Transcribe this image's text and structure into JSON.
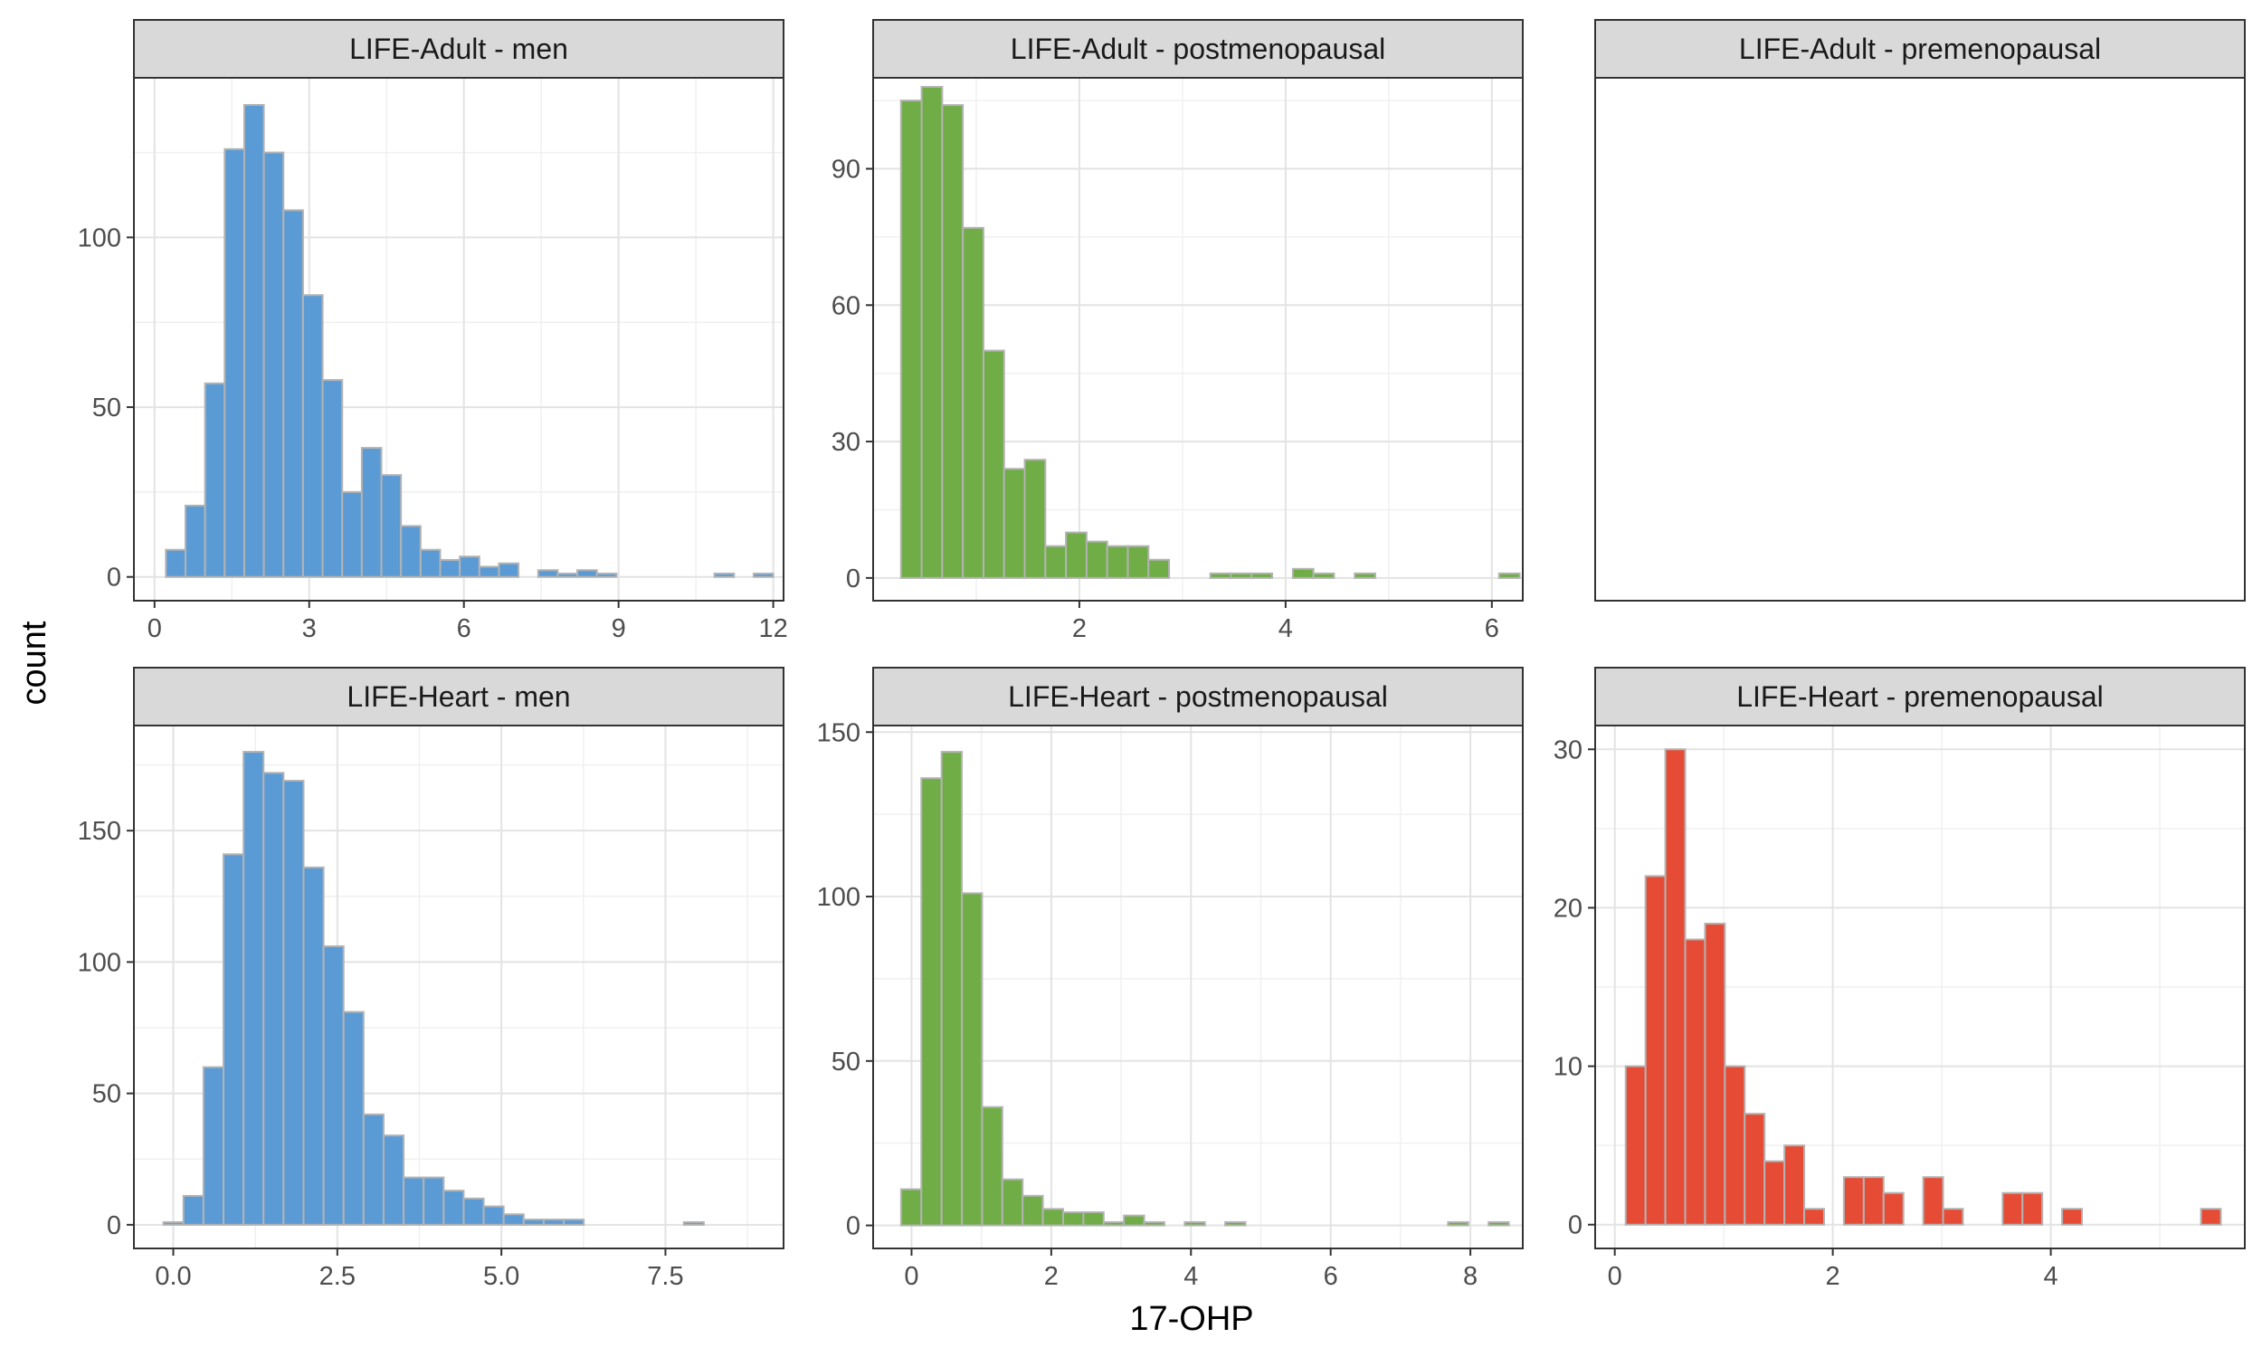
{
  "figure": {
    "xlabel": "17-OHP",
    "ylabel": "count"
  },
  "colors": {
    "men": "#5b9bd5",
    "postmenopausal": "#70ad47",
    "premenopausal": "#e64b35",
    "bar_outline": "#b3b3b3",
    "strip_fill": "#d9d9d9"
  },
  "chart_data": [
    {
      "type": "bar",
      "title": "LIFE-Adult - men",
      "group": "men",
      "bin_start": 0.22,
      "bin_width": 0.38,
      "values": [
        8,
        21,
        57,
        126,
        139,
        125,
        108,
        83,
        58,
        25,
        38,
        30,
        15,
        8,
        5,
        6,
        3,
        4,
        0,
        2,
        1,
        2,
        1,
        0,
        0,
        0,
        0,
        0,
        1,
        0,
        1
      ],
      "xlim": [
        -0.4,
        12.2
      ],
      "ylim": [
        -7,
        147
      ],
      "xticks": [
        0,
        3,
        6,
        9,
        12
      ],
      "xticklabels": [
        "0",
        "3",
        "6",
        "9",
        "12"
      ],
      "yticks": [
        0,
        50,
        100
      ],
      "yticklabels": [
        "0",
        "50",
        "100"
      ]
    },
    {
      "type": "bar",
      "title": "LIFE-Adult - postmenopausal",
      "group": "postmenopausal",
      "bin_start": 0.27,
      "bin_width": 0.2,
      "values": [
        105,
        108,
        104,
        77,
        50,
        24,
        26,
        7,
        10,
        8,
        7,
        7,
        4,
        0,
        0,
        1,
        1,
        1,
        0,
        2,
        1,
        0,
        1,
        0,
        0,
        0,
        0,
        0,
        0,
        1
      ],
      "xlim": [
        0.0,
        6.3
      ],
      "ylim": [
        -5,
        110
      ],
      "xticks": [
        2,
        4,
        6
      ],
      "xticklabels": [
        "2",
        "4",
        "6"
      ],
      "yticks": [
        0,
        30,
        60,
        90
      ],
      "yticklabels": [
        "0",
        "30",
        "60",
        "90"
      ]
    },
    {
      "type": "bar",
      "title": "LIFE-Adult - premenopausal",
      "group": "premenopausal",
      "values": []
    },
    {
      "type": "bar",
      "title": "LIFE-Heart - men",
      "group": "men",
      "bin_start": -0.15,
      "bin_width": 0.305,
      "values": [
        1,
        11,
        60,
        141,
        180,
        172,
        169,
        136,
        106,
        81,
        42,
        34,
        18,
        18,
        13,
        10,
        7,
        4,
        2,
        2,
        2,
        0,
        0,
        0,
        0,
        0,
        1,
        0,
        0,
        0
      ],
      "xlim": [
        -0.6,
        9.3
      ],
      "ylim": [
        -9,
        190
      ],
      "xticks": [
        0.0,
        2.5,
        5.0,
        7.5
      ],
      "xticklabels": [
        "0.0",
        "2.5",
        "5.0",
        "7.5"
      ],
      "yticks": [
        0,
        50,
        100,
        150
      ],
      "yticklabels": [
        "0",
        "50",
        "100",
        "150"
      ]
    },
    {
      "type": "bar",
      "title": "LIFE-Heart - postmenopausal",
      "group": "postmenopausal",
      "bin_start": -0.15,
      "bin_width": 0.29,
      "values": [
        11,
        136,
        144,
        101,
        36,
        14,
        9,
        5,
        4,
        4,
        1,
        3,
        1,
        0,
        1,
        0,
        1,
        0,
        0,
        0,
        0,
        0,
        0,
        0,
        0,
        0,
        0,
        1,
        0,
        1
      ],
      "xlim": [
        -0.55,
        8.75
      ],
      "ylim": [
        -7,
        152
      ],
      "xticks": [
        0,
        2,
        4,
        6,
        8
      ],
      "xticklabels": [
        "0",
        "2",
        "4",
        "6",
        "8"
      ],
      "yticks": [
        0,
        50,
        100,
        150
      ],
      "yticklabels": [
        "0",
        "50",
        "100",
        "150"
      ]
    },
    {
      "type": "bar",
      "title": "LIFE-Heart - premenopausal",
      "group": "premenopausal",
      "bin_start": 0.1,
      "bin_width": 0.182,
      "values": [
        10,
        22,
        30,
        18,
        19,
        10,
        7,
        4,
        5,
        1,
        0,
        3,
        3,
        2,
        0,
        3,
        1,
        0,
        0,
        2,
        2,
        0,
        1,
        0,
        0,
        0,
        0,
        0,
        0,
        1
      ],
      "xlim": [
        -0.18,
        5.78
      ],
      "ylim": [
        -1.5,
        31.5
      ],
      "xticks": [
        0,
        2,
        4
      ],
      "xticklabels": [
        "0",
        "2",
        "4"
      ],
      "yticks": [
        0,
        10,
        20,
        30
      ],
      "yticklabels": [
        "0",
        "10",
        "20",
        "30"
      ]
    }
  ]
}
